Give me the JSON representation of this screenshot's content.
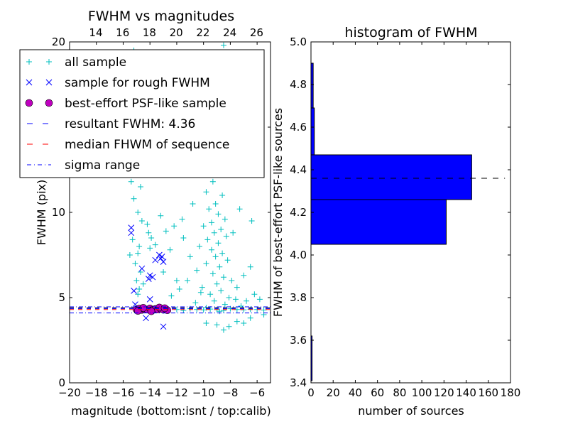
{
  "chart_data": [
    {
      "type": "scatter",
      "title": "FWHM vs magnitudes",
      "xlabel": "magnitude (bottom:isnt / top:calib)",
      "ylabel": "FWHM (pix)",
      "xlim": [
        -20,
        -5
      ],
      "ylim": [
        0,
        20
      ],
      "top_axis_offset": 32.04,
      "xticks": [
        "−20",
        "−18",
        "−16",
        "−14",
        "−12",
        "−10",
        "−8",
        "−6"
      ],
      "xtick_values": [
        -20,
        -18,
        -16,
        -14,
        -12,
        -10,
        -8,
        -6
      ],
      "top_ticks": [
        "14",
        "16",
        "18",
        "20",
        "22",
        "24",
        "26"
      ],
      "top_tick_values": [
        14,
        16,
        18,
        20,
        22,
        24,
        26
      ],
      "yticks": [
        "0",
        "5",
        "10",
        "15",
        "20"
      ],
      "ytick_values": [
        0,
        5,
        10,
        15,
        20
      ],
      "legend": {
        "placement": "upper-left",
        "entries": [
          {
            "label": "all sample"
          },
          {
            "label": "sample for rough FWHM"
          },
          {
            "label": "best-effort PSF-like sample"
          },
          {
            "label": "resultant FWHM: 4.36"
          },
          {
            "label": "median FHWM of sequence"
          },
          {
            "label": "sigma range"
          }
        ]
      },
      "colors": {
        "all": "#00bfbf",
        "rough": "#0000ff",
        "psf": "#bf00bf",
        "result": "#0000ff",
        "median": "#ff0000",
        "sigma": "#0000ff"
      },
      "resultant_fwhm": 4.36,
      "median_fwhm": 4.3,
      "sigma_range": [
        4.1,
        4.46
      ],
      "black_line": 4.4,
      "all_sample": [
        [
          -15.2,
          19.5
        ],
        [
          -15,
          18
        ],
        [
          -14.9,
          16.5
        ],
        [
          -15.1,
          15
        ],
        [
          -14.8,
          13.5
        ],
        [
          -15,
          12.5
        ],
        [
          -14.7,
          11.5
        ],
        [
          -15.2,
          10.8
        ],
        [
          -14.9,
          10
        ],
        [
          -14.6,
          9.5
        ],
        [
          -15.3,
          8.4
        ],
        [
          -14.8,
          8
        ],
        [
          -14.9,
          7.6
        ],
        [
          -15.1,
          7
        ],
        [
          -14.7,
          6.5
        ],
        [
          -15,
          6
        ],
        [
          -14.8,
          5.5
        ],
        [
          -14.9,
          5.2
        ],
        [
          -14.2,
          9.3
        ],
        [
          -14.1,
          8.8
        ],
        [
          -13.9,
          8.5
        ],
        [
          -14,
          7.9
        ],
        [
          -13.6,
          8.1
        ],
        [
          -13.2,
          9.8
        ],
        [
          -12.8,
          8.9
        ],
        [
          -13,
          6.5
        ],
        [
          -12.2,
          9.2
        ],
        [
          -12.5,
          7.8
        ],
        [
          -12,
          6
        ],
        [
          -11.8,
          5.5
        ],
        [
          -12.4,
          5.1
        ],
        [
          -13.5,
          19
        ],
        [
          -12.9,
          17
        ],
        [
          -14,
          15.5
        ],
        [
          -13.8,
          12.4
        ],
        [
          -15.4,
          11.8
        ],
        [
          -15.5,
          7.5
        ],
        [
          -14.5,
          5.8
        ],
        [
          -9.5,
          14
        ],
        [
          -9.2,
          13.5
        ],
        [
          -9,
          12.8
        ],
        [
          -8.8,
          12.2
        ],
        [
          -9.3,
          11.8
        ],
        [
          -9.8,
          11.2
        ],
        [
          -8.6,
          11
        ],
        [
          -9.1,
          10.5
        ],
        [
          -9.6,
          10.2
        ],
        [
          -8.9,
          9.9
        ],
        [
          -8.4,
          9.6
        ],
        [
          -9.4,
          9.4
        ],
        [
          -10,
          9.2
        ],
        [
          -8.7,
          9
        ],
        [
          -9.2,
          8.8
        ],
        [
          -8.3,
          8.6
        ],
        [
          -9.7,
          8.4
        ],
        [
          -8.9,
          8.2
        ],
        [
          -10.3,
          8
        ],
        [
          -9.4,
          7.8
        ],
        [
          -8.6,
          7.6
        ],
        [
          -9.1,
          7.4
        ],
        [
          -8.2,
          7.2
        ],
        [
          -9.8,
          7
        ],
        [
          -8.8,
          6.8
        ],
        [
          -10.5,
          6.6
        ],
        [
          -9.3,
          6.4
        ],
        [
          -8.5,
          6.2
        ],
        [
          -7.9,
          6
        ],
        [
          -9,
          5.8
        ],
        [
          -10.1,
          5.6
        ],
        [
          -8.7,
          5.4
        ],
        [
          -9.5,
          5.2
        ],
        [
          -8.1,
          5
        ],
        [
          -7.6,
          4.9
        ],
        [
          -9.2,
          4.8
        ],
        [
          -10.6,
          4.7
        ],
        [
          -8.4,
          4.6
        ],
        [
          -7.2,
          4.5
        ],
        [
          -9.8,
          4.4
        ],
        [
          -6.8,
          4.8
        ],
        [
          -6.2,
          5.2
        ],
        [
          -5.8,
          4.9
        ],
        [
          -7.5,
          5.6
        ],
        [
          -7,
          6.3
        ],
        [
          -11,
          7.4
        ],
        [
          -11.5,
          8.5
        ],
        [
          -10.8,
          10.5
        ],
        [
          -11.2,
          6
        ],
        [
          -10.4,
          12.5
        ],
        [
          -7.8,
          8.8
        ],
        [
          -7.3,
          10.2
        ],
        [
          -6.5,
          6.8
        ],
        [
          -8,
          13
        ],
        [
          -9.9,
          16
        ],
        [
          -8.5,
          19.8
        ],
        [
          -12.2,
          16.5
        ],
        [
          -6.4,
          9.5
        ],
        [
          -11.6,
          9.6
        ],
        [
          -10.2,
          5.3
        ],
        [
          -8.8,
          4.2
        ],
        [
          -12,
          4.3
        ],
        [
          -11.5,
          4.25
        ],
        [
          -11,
          4.35
        ],
        [
          -10.5,
          4.3
        ],
        [
          -10,
          4.28
        ],
        [
          -9.5,
          4.33
        ],
        [
          -9,
          4.3
        ],
        [
          -8.5,
          4.25
        ],
        [
          -8,
          4.35
        ],
        [
          -7.5,
          4.3
        ],
        [
          -7,
          4.28
        ],
        [
          -6.5,
          4.32
        ],
        [
          -6,
          4.3
        ],
        [
          -5.5,
          4.27
        ],
        [
          -8.5,
          3.1
        ],
        [
          -9,
          3.4
        ],
        [
          -7.5,
          3.6
        ],
        [
          -6.5,
          3.8
        ],
        [
          -5.5,
          4
        ],
        [
          -9.8,
          3.5
        ],
        [
          -8.1,
          3.3
        ],
        [
          -7,
          3.5
        ]
      ],
      "rough_sample": [
        [
          -15.4,
          9.1
        ],
        [
          -15.4,
          8.8
        ],
        [
          -13.3,
          7.5
        ],
        [
          -13.2,
          7.3
        ],
        [
          -13.1,
          7.4
        ],
        [
          -13,
          7.1
        ],
        [
          -13.6,
          7.2
        ],
        [
          -14.6,
          6.7
        ],
        [
          -14,
          6.3
        ],
        [
          -13.8,
          6.2
        ],
        [
          -14.1,
          6.1
        ],
        [
          -15.2,
          5.4
        ],
        [
          -14,
          4.9
        ],
        [
          -14.3,
          3.8
        ],
        [
          -13,
          3.3
        ],
        [
          -15.1,
          4.6
        ]
      ],
      "psf_sample": [
        [
          -15,
          4.3
        ],
        [
          -14.8,
          4.35
        ],
        [
          -14.6,
          4.28
        ],
        [
          -14.4,
          4.32
        ],
        [
          -14.2,
          4.3
        ],
        [
          -14,
          4.36
        ],
        [
          -13.8,
          4.27
        ],
        [
          -13.6,
          4.33
        ],
        [
          -13.4,
          4.3
        ],
        [
          -13.2,
          4.35
        ],
        [
          -13,
          4.29
        ],
        [
          -12.8,
          4.31
        ],
        [
          -12.7,
          4.26
        ],
        [
          -14.9,
          4.22
        ],
        [
          -14.5,
          4.4
        ],
        [
          -13.9,
          4.2
        ],
        [
          -13.3,
          4.42
        ],
        [
          -12.9,
          4.38
        ]
      ]
    },
    {
      "type": "bar",
      "orientation": "horizontal",
      "title": "histogram of FWHM",
      "xlabel": "number of sources",
      "ylabel": "FWHM of best-effort PSF-like sources",
      "xlim": [
        0,
        180
      ],
      "ylim": [
        3.4,
        5.0
      ],
      "xticks": [
        "0",
        "20",
        "40",
        "60",
        "80",
        "100",
        "120",
        "140",
        "160",
        "180"
      ],
      "xtick_values": [
        0,
        20,
        40,
        60,
        80,
        100,
        120,
        140,
        160,
        180
      ],
      "yticks": [
        "3.4",
        "3.6",
        "3.8",
        "4.0",
        "4.2",
        "4.4",
        "4.6",
        "4.8",
        "5.0"
      ],
      "ytick_values": [
        3.4,
        3.6,
        3.8,
        4.0,
        4.2,
        4.4,
        4.6,
        4.8,
        5.0
      ],
      "bins": [
        [
          3.41,
          3.62,
          1
        ],
        [
          4.05,
          4.26,
          122
        ],
        [
          4.26,
          4.47,
          145
        ],
        [
          4.47,
          4.69,
          3
        ],
        [
          4.69,
          4.9,
          2
        ]
      ],
      "bar_color": "#0000ff",
      "fwhm_line": 4.36,
      "fwhm_line_xmax": 175
    }
  ]
}
